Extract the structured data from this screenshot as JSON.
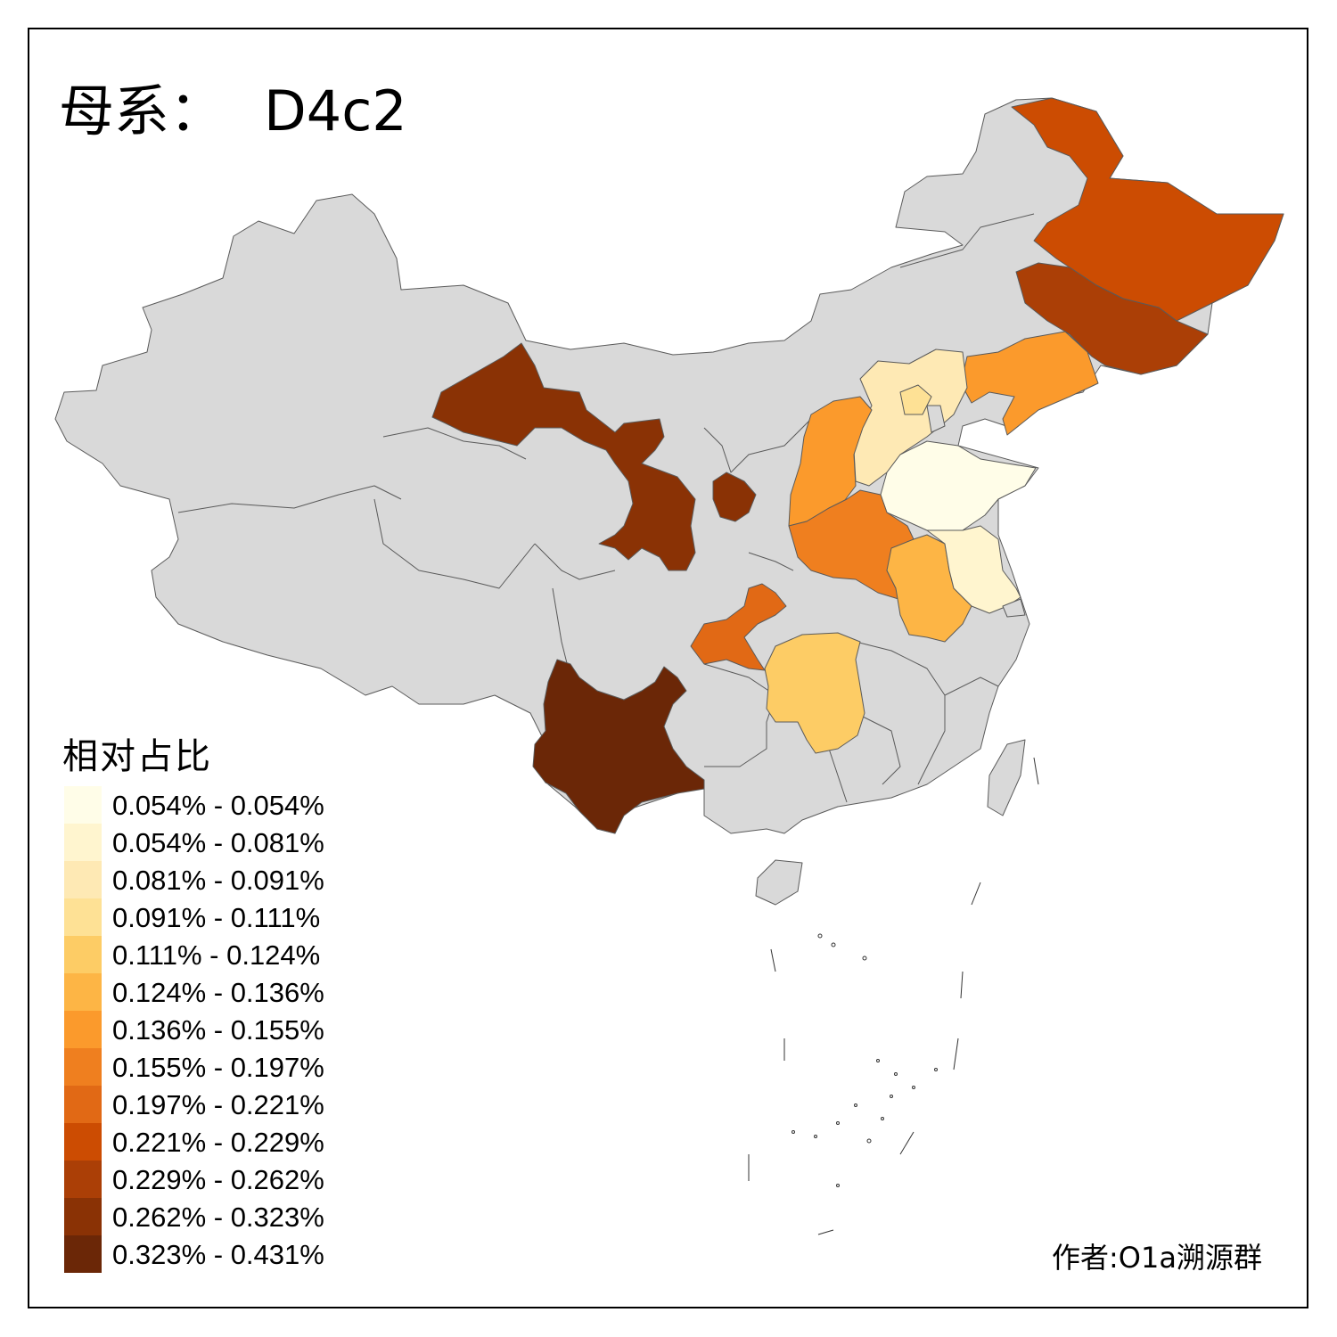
{
  "title": {
    "prefix": "母系：",
    "haplogroup": "D4c2"
  },
  "legend": {
    "title": "相对占比",
    "bins": [
      {
        "label": "0.054% - 0.054%",
        "color": "#fffde8"
      },
      {
        "label": "0.054% - 0.081%",
        "color": "#fff5cf"
      },
      {
        "label": "0.081% - 0.091%",
        "color": "#fee9b4"
      },
      {
        "label": "0.091% - 0.111%",
        "color": "#fee195"
      },
      {
        "label": "0.111% - 0.124%",
        "color": "#fdcc65"
      },
      {
        "label": "0.124% - 0.136%",
        "color": "#fdb545"
      },
      {
        "label": "0.136% - 0.155%",
        "color": "#fb9a2c"
      },
      {
        "label": "0.155% - 0.197%",
        "color": "#ef7f1f"
      },
      {
        "label": "0.197% - 0.221%",
        "color": "#e16915"
      },
      {
        "label": "0.221% - 0.229%",
        "color": "#cc4c02"
      },
      {
        "label": "0.229% - 0.262%",
        "color": "#ab3f06"
      },
      {
        "label": "0.262% - 0.323%",
        "color": "#8a3205"
      },
      {
        "label": "0.323% - 0.431%",
        "color": "#6b2707"
      }
    ]
  },
  "credit": "作者:O1a溯源群",
  "colors": {
    "no_data": "#d9d9d9",
    "boundary": "#5a5a5a",
    "frame": "#000000",
    "sea": "#ffffff"
  }
}
